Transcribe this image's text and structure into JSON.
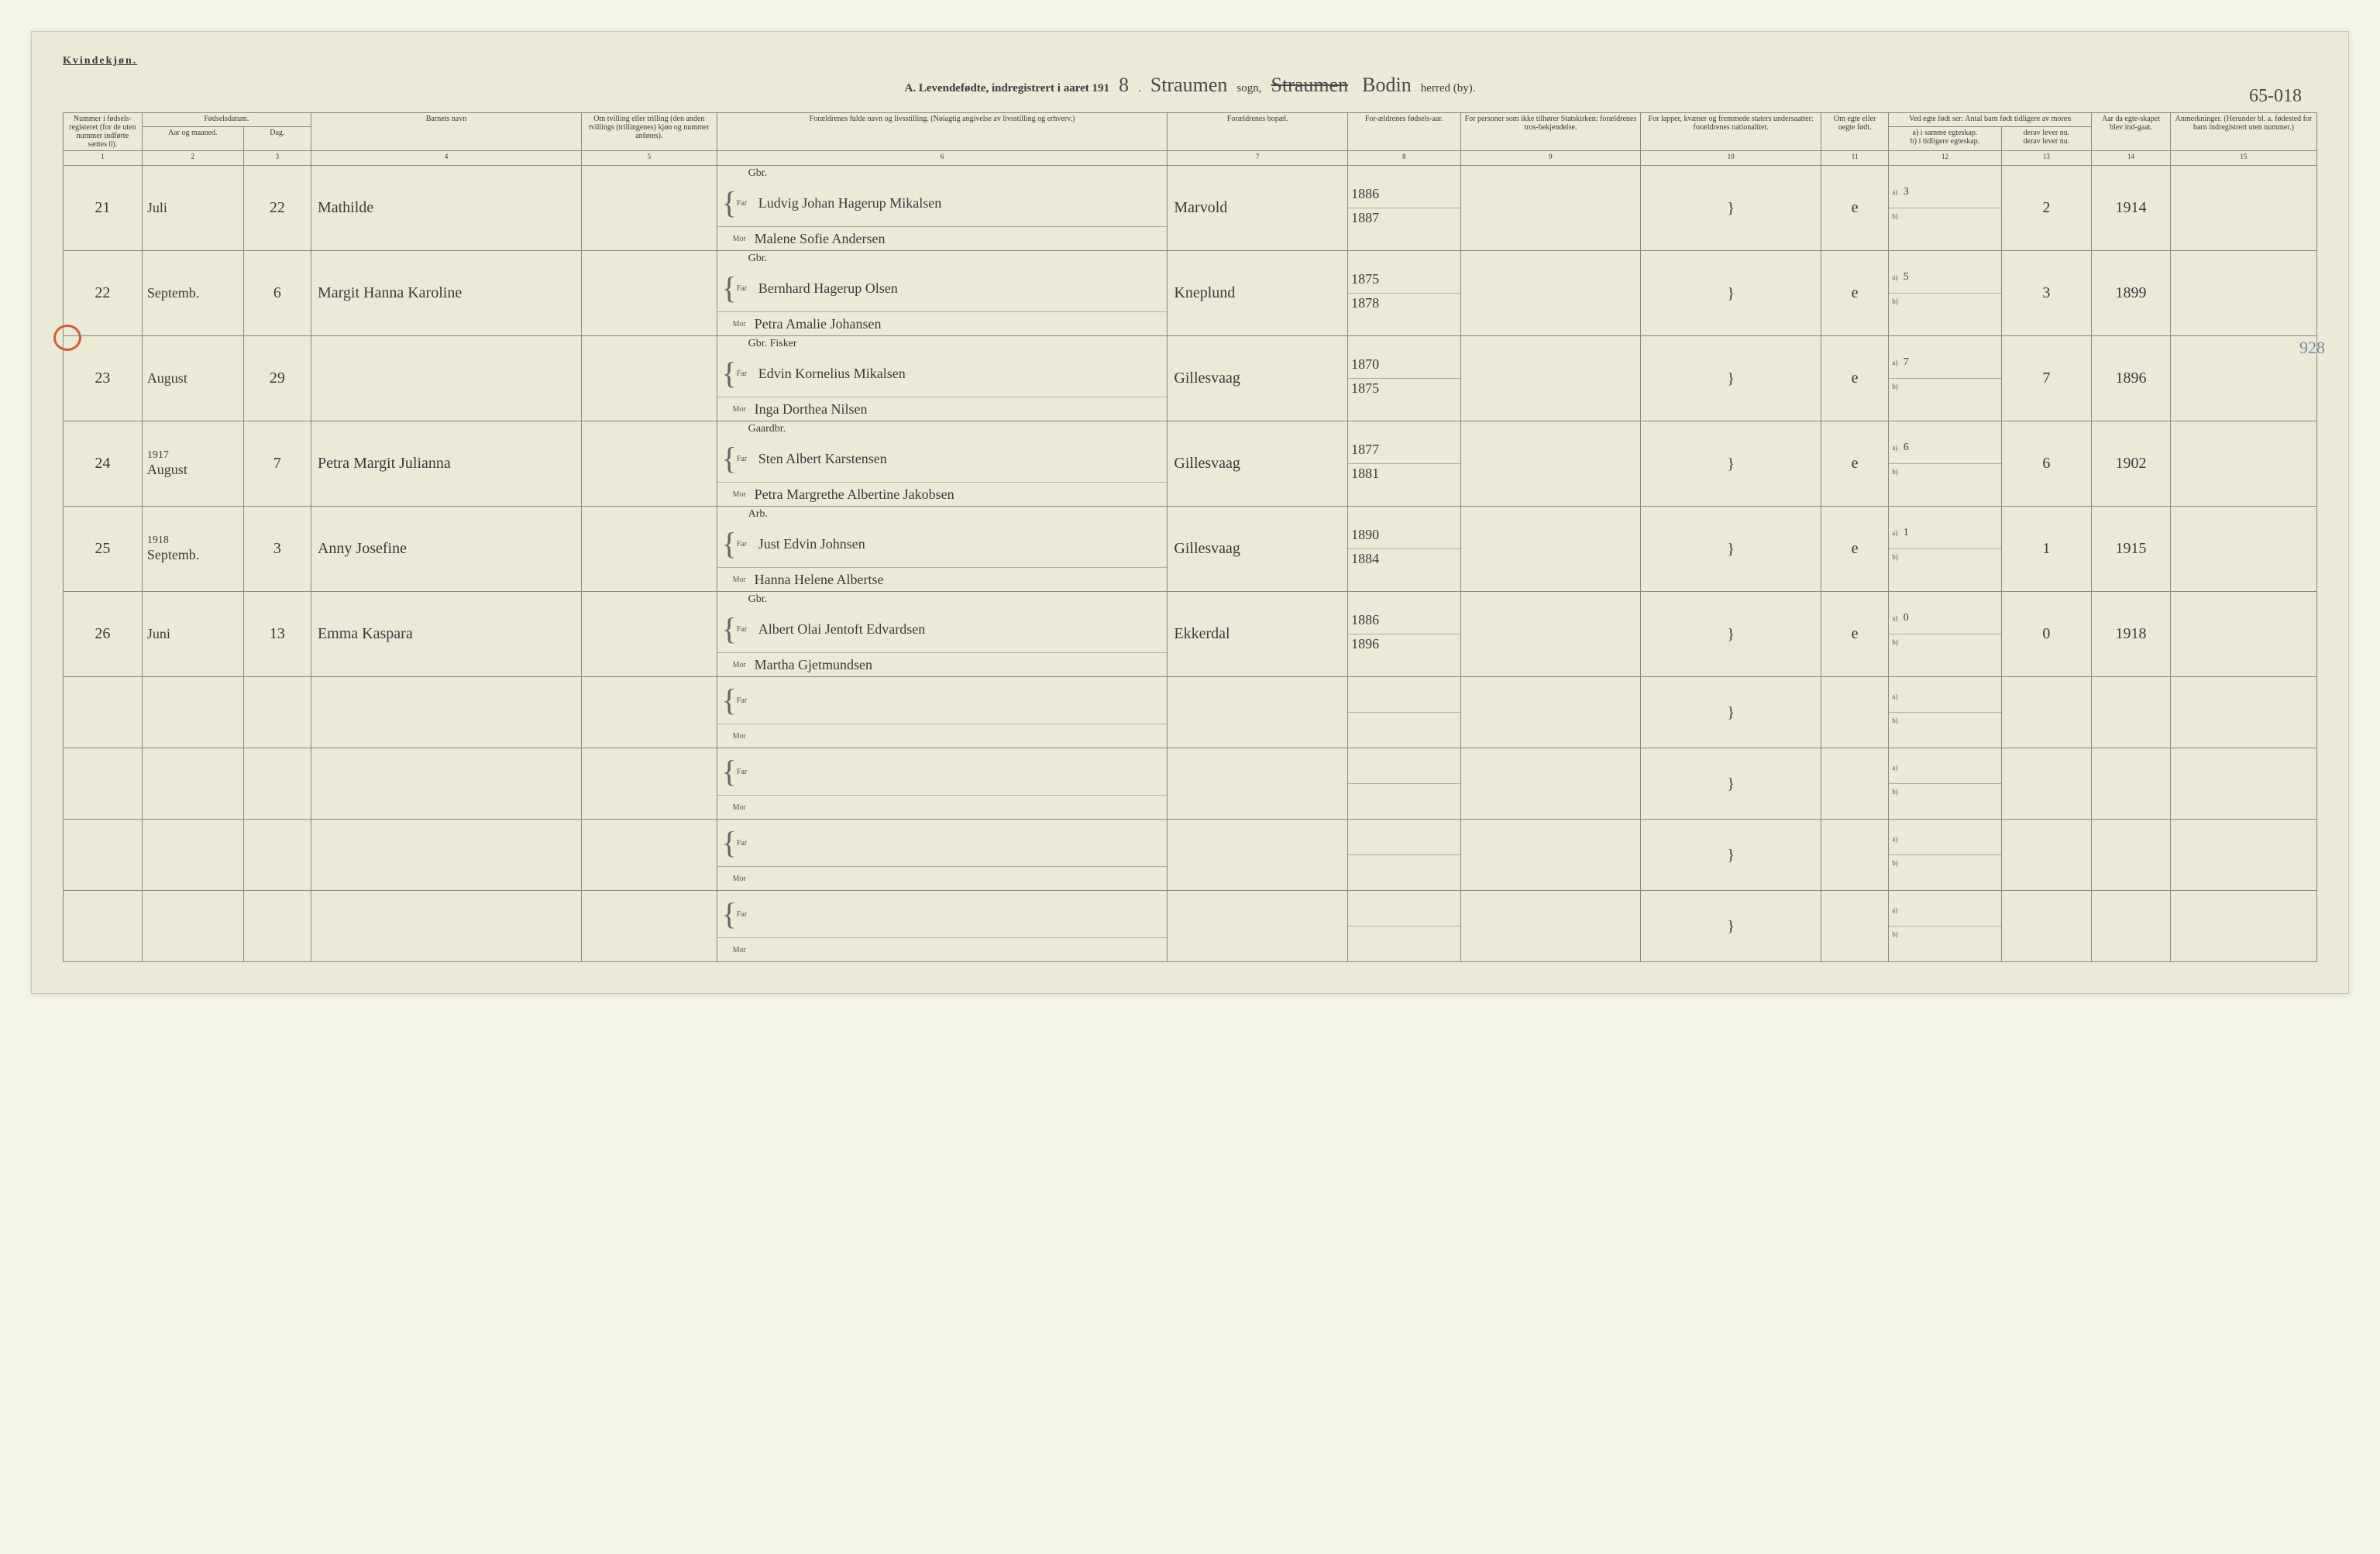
{
  "header": {
    "kvindekjon": "Kvindekjøn.",
    "title_prefix": "A. Levendefødte, indregistrert i aaret 191",
    "year_suffix": "8",
    "sogn_handwritten": "Straumen",
    "sogn_label": "sogn,",
    "herred_handwritten": "Bodin",
    "herred_label": "herred (by).",
    "herred_code": "65-018"
  },
  "columns": {
    "c1": "Nummer i fødsels-registeret (for de uten nummer indførte sættes 0).",
    "c2": "Fødselsdatum.",
    "c2a": "Aar og maaned.",
    "c2b": "Dag.",
    "c4": "Barnets navn",
    "c5": "Om tvilling eller trilling (den anden tvillings (trillingenes) kjøn og nummer anføres).",
    "c6": "Forældrenes fulde navn og livsstilling. (Nøiagtig angivelse av livsstilling og erhverv.)",
    "c7": "Forældrenes bopæl.",
    "c8": "For-ældrenes fødsels-aar.",
    "c9": "For personer som ikke tilhører Statskirken: forældrenes tros-bekjendelse.",
    "c10": "For lapper, kvæner og fremmede staters undersaatter: forældrenes nationalitet.",
    "c11": "Om egte eller uegte født.",
    "c12": "Ved egte født ser: Antal barn født tidligere av moren",
    "c12a": "a) i samme egteskap.",
    "c12b": "b) i tidligere egteskap.",
    "c13a": "derav lever nu.",
    "c13b": "derav lever nu.",
    "c14": "Aar da egte-skapet blev ind-gaat.",
    "c15": "Anmerkninger. (Herunder bl. a. fødested for barn indregistrert uten nummer.)"
  },
  "colnums": [
    "1",
    "2",
    "3",
    "4",
    "5",
    "6",
    "7",
    "8",
    "9",
    "10",
    "11",
    "12",
    "13",
    "14",
    "15"
  ],
  "labels": {
    "far": "Far",
    "mor": "Mor",
    "a": "a)",
    "b": "b)"
  },
  "rows": [
    {
      "num": "21",
      "month": "Juli",
      "day": "22",
      "name": "Mathilde",
      "occup": "Gbr.",
      "far": "Ludvig Johan Hagerup Mikalsen",
      "mor": "Malene Sofie Andersen",
      "bopal": "Marvold",
      "far_year": "1886",
      "mor_year": "1887",
      "egte": "e",
      "a_val": "3",
      "derav": "2",
      "marriage": "1914"
    },
    {
      "num": "22",
      "month": "Septemb.",
      "day": "6",
      "name": "Margit Hanna Karoline",
      "occup": "Gbr.",
      "far": "Bernhard Hagerup Olsen",
      "mor": "Petra Amalie Johansen",
      "bopal": "Kneplund",
      "far_year": "1875",
      "mor_year": "1878",
      "egte": "e",
      "a_val": "5",
      "derav": "3",
      "marriage": "1899"
    },
    {
      "num": "23",
      "month": "August",
      "day": "29",
      "name": "",
      "occup": "Gbr. Fisker",
      "far": "Edvin Kornelius Mikalsen",
      "mor": "Inga Dorthea Nilsen",
      "bopal": "Gillesvaag",
      "far_year": "1870",
      "mor_year": "1875",
      "egte": "e",
      "a_val": "7",
      "derav": "7",
      "marriage": "1896"
    },
    {
      "num": "24",
      "month_pre": "1917",
      "month": "August",
      "day": "7",
      "name": "Petra Margit Julianna",
      "occup": "Gaardbr.",
      "far": "Sten Albert Karstensen",
      "mor": "Petra Margrethe Albertine Jakobsen",
      "bopal": "Gillesvaag",
      "far_year": "1877",
      "mor_year": "1881",
      "egte": "e",
      "a_val": "6",
      "derav": "6",
      "marriage": "1902",
      "side": "928"
    },
    {
      "num": "25",
      "month_pre": "1918",
      "month": "Septemb.",
      "day": "3",
      "name": "Anny Josefine",
      "occup": "Arb.",
      "far": "Just Edvin Johnsen",
      "mor": "Hanna Helene Albertse",
      "bopal": "Gillesvaag",
      "far_year": "1890",
      "mor_year": "1884",
      "egte": "e",
      "a_val": "1",
      "derav": "1",
      "marriage": "1915"
    },
    {
      "num": "26",
      "month": "Juni",
      "day": "13",
      "name": "Emma Kaspara",
      "occup": "Gbr.",
      "far": "Albert Olai Jentoft Edvardsen",
      "mor": "Martha Gjetmundsen",
      "bopal": "Ekkerdal",
      "far_year": "1886",
      "mor_year": "1896",
      "egte": "e",
      "a_val": "0",
      "derav": "0",
      "marriage": "1918"
    },
    {
      "empty": true
    },
    {
      "empty": true
    },
    {
      "empty": true
    },
    {
      "empty": true
    }
  ],
  "styling": {
    "page_bg": "#ebead6",
    "border_color": "#8a8a7a",
    "handwriting_color": "#3a3a3a",
    "red_circle_color": "#d65a3a",
    "header_fontsize": 10,
    "handwriting_fontsize": 20
  }
}
